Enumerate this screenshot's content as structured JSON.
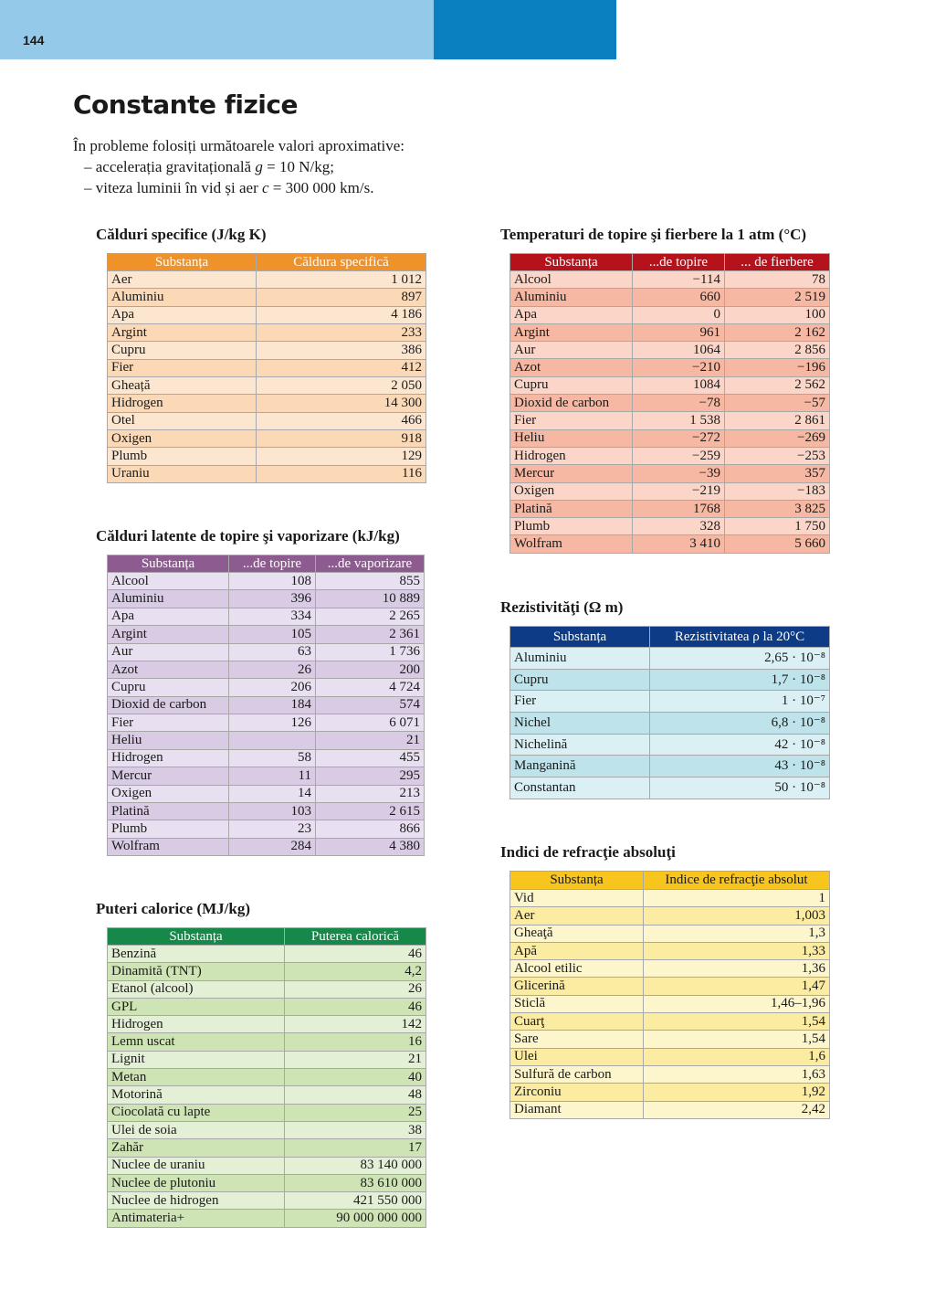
{
  "header": {
    "page_number": "144"
  },
  "title": "Constante fizice",
  "intro": {
    "text": "În probleme folosiți următoarele valori aproximative:",
    "items": [
      [
        "– accelerația gravitațională ",
        "g",
        " = 10 N/kg;"
      ],
      [
        "– viteza luminii în vid și aer ",
        "c",
        " = 300 000 km/s."
      ]
    ]
  },
  "tables": [
    {
      "title": "Călduri specifice (J/kg K)",
      "columns": [
        "Substanța",
        "Căldura specifică"
      ],
      "rows": [
        [
          "Aer",
          "1 012"
        ],
        [
          "Aluminiu",
          "897"
        ],
        [
          "Apa",
          "4 186"
        ],
        [
          "Argint",
          "233"
        ],
        [
          "Cupru",
          "386"
        ],
        [
          "Fier",
          "412"
        ],
        [
          "Gheață",
          "2 050"
        ],
        [
          "Hidrogen",
          "14 300"
        ],
        [
          "Otel",
          "466"
        ],
        [
          "Oxigen",
          "918"
        ],
        [
          "Plumb",
          "129"
        ],
        [
          "Uraniu",
          "116"
        ]
      ]
    },
    {
      "title": "Călduri latente de topire şi vaporizare (kJ/kg)",
      "columns": [
        "Substanța",
        "...de topire",
        "...de vaporizare"
      ],
      "rows": [
        [
          "Alcool",
          "108",
          "855"
        ],
        [
          "Aluminiu",
          "396",
          "10 889"
        ],
        [
          "Apa",
          "334",
          "2 265"
        ],
        [
          "Argint",
          "105",
          "2 361"
        ],
        [
          "Aur",
          "63",
          "1 736"
        ],
        [
          "Azot",
          "26",
          "200"
        ],
        [
          "Cupru",
          "206",
          "4 724"
        ],
        [
          "Dioxid de carbon",
          "184",
          "574"
        ],
        [
          "Fier",
          "126",
          "6 071"
        ],
        [
          "Heliu",
          null,
          "21"
        ],
        [
          "Hidrogen",
          "58",
          "455"
        ],
        [
          "Mercur",
          "11",
          "295"
        ],
        [
          "Oxigen",
          "14",
          "213"
        ],
        [
          "Platină",
          "103",
          "2 615"
        ],
        [
          "Plumb",
          "23",
          "866"
        ],
        [
          "Wolfram",
          "284",
          "4 380"
        ]
      ]
    },
    {
      "title": "Puteri calorice (MJ/kg)",
      "columns": [
        "Substanța",
        "Puterea calorică"
      ],
      "rows": [
        [
          "Benzină",
          "46"
        ],
        [
          "Dinamită (TNT)",
          "4,2"
        ],
        [
          "Etanol (alcool)",
          "26"
        ],
        [
          "GPL",
          "46"
        ],
        [
          "Hidrogen",
          "142"
        ],
        [
          "Lemn uscat",
          "16"
        ],
        [
          "Lignit",
          "21"
        ],
        [
          "Metan",
          "40"
        ],
        [
          "Motorină",
          "48"
        ],
        [
          "Ciocolată cu lapte",
          "25"
        ],
        [
          "Ulei de soia",
          "38"
        ],
        [
          "Zahăr",
          "17"
        ],
        [
          "Nuclee de uraniu",
          "83 140 000"
        ],
        [
          "Nuclee de plutoniu",
          "83 610 000"
        ],
        [
          "Nuclee de hidrogen",
          "421 550 000"
        ],
        [
          "Antimateria+",
          "90 000 000 000"
        ]
      ]
    },
    {
      "title": "Temperaturi de topire şi fierbere la 1 atm (°C)",
      "columns": [
        "Substanța",
        "...de topire",
        "... de fierbere"
      ],
      "rows": [
        [
          "Alcool",
          "−114",
          "78"
        ],
        [
          "Aluminiu",
          "660",
          "2 519"
        ],
        [
          "Apa",
          "0",
          "100"
        ],
        [
          "Argint",
          "961",
          "2 162"
        ],
        [
          "Aur",
          "1064",
          "2 856"
        ],
        [
          "Azot",
          "−210",
          "−196"
        ],
        [
          "Cupru",
          "1084",
          "2 562"
        ],
        [
          "Dioxid de carbon",
          "−78",
          "−57"
        ],
        [
          "Fier",
          "1 538",
          "2 861"
        ],
        [
          "Heliu",
          "−272",
          "−269"
        ],
        [
          "Hidrogen",
          "−259",
          "−253"
        ],
        [
          "Mercur",
          "−39",
          "357"
        ],
        [
          "Oxigen",
          "−219",
          "−183"
        ],
        [
          "Platină",
          "1768",
          "3 825"
        ],
        [
          "Plumb",
          "328",
          "1 750"
        ],
        [
          "Wolfram",
          "3 410",
          "5 660"
        ]
      ]
    },
    {
      "title": "Rezistivităţi (Ω m)",
      "columns": [
        "Substanța",
        "Rezistivitatea ρ la 20°C"
      ],
      "rows": [
        [
          "Aluminiu",
          "2,65 · 10⁻⁸"
        ],
        [
          "Cupru",
          "1,7 · 10⁻⁸"
        ],
        [
          "Fier",
          "1 · 10⁻⁷"
        ],
        [
          "Nichel",
          "6,8 · 10⁻⁸"
        ],
        [
          "Nichelină",
          "42 · 10⁻⁸"
        ],
        [
          "Manganină",
          "43 · 10⁻⁸"
        ],
        [
          "Constantan",
          "50 · 10⁻⁸"
        ]
      ]
    },
    {
      "title": "Indici de refracţie absoluţi",
      "columns": [
        "Substanța",
        "Indice de refracţie absolut"
      ],
      "rows": [
        [
          "Vid",
          "1"
        ],
        [
          "Aer",
          "1,003"
        ],
        [
          "Gheaţă",
          "1,3"
        ],
        [
          "Apă",
          "1,33"
        ],
        [
          "Alcool etilic",
          "1,36"
        ],
        [
          "Glicerină",
          "1,47"
        ],
        [
          "Sticlă",
          "1,46–1,96"
        ],
        [
          "Cuarţ",
          "1,54"
        ],
        [
          "Sare",
          "1,54"
        ],
        [
          "Ulei",
          "1,6"
        ],
        [
          "Sulfură de carbon",
          "1,63"
        ],
        [
          "Zirconiu",
          "1,92"
        ],
        [
          "Diamant",
          "2,42"
        ]
      ]
    }
  ]
}
